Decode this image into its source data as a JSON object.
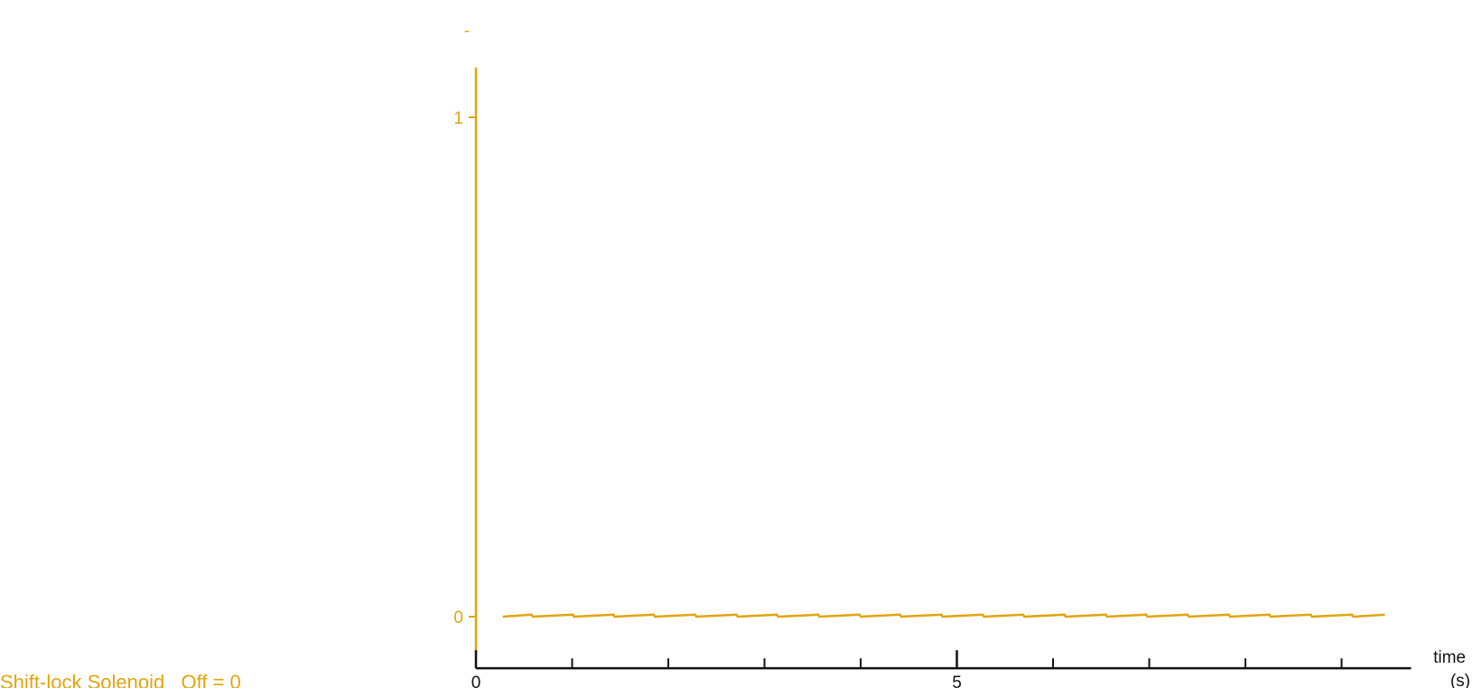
{
  "chart_data": {
    "type": "line",
    "top_label": "-",
    "xlabel": [
      "time",
      "(s)"
    ],
    "xlim": [
      0,
      9.6
    ],
    "ylim": [
      -0.06,
      1.1
    ],
    "x_ticks_labeled": [
      {
        "value": 0,
        "label": "0"
      },
      {
        "value": 5,
        "label": "5"
      }
    ],
    "x_ticks_minor": [
      1,
      2,
      3,
      4,
      6,
      7,
      8,
      9
    ],
    "y_ticks": [
      {
        "value": 0,
        "label": "0"
      },
      {
        "value": 1,
        "label": "1"
      }
    ],
    "series": [
      {
        "name": "Shift-lock Solenoid   Off = 0",
        "color": "#e2a40e",
        "x": [
          0.28,
          0.58,
          0.59,
          1.01,
          1.02,
          1.43,
          1.44,
          1.85,
          1.86,
          2.28,
          2.29,
          2.71,
          2.72,
          3.13,
          3.14,
          3.56,
          3.57,
          3.99,
          4.0,
          4.41,
          4.42,
          4.84,
          4.85,
          5.27,
          5.28,
          5.69,
          5.7,
          6.12,
          6.13,
          6.55,
          6.56,
          6.97,
          6.98,
          7.4,
          7.41,
          7.83,
          7.84,
          8.25,
          8.26,
          8.68,
          8.69,
          9.11,
          9.12,
          9.45
        ],
        "y": [
          0.0,
          0.004,
          0.0,
          0.004,
          0.0,
          0.004,
          0.0,
          0.004,
          0.0,
          0.004,
          0.0,
          0.004,
          0.0,
          0.004,
          0.0,
          0.004,
          0.0,
          0.004,
          0.0,
          0.004,
          0.0,
          0.004,
          0.0,
          0.004,
          0.0,
          0.004,
          0.0,
          0.004,
          0.0,
          0.004,
          0.0,
          0.004,
          0.0,
          0.004,
          0.0,
          0.004,
          0.0,
          0.004,
          0.0,
          0.004,
          0.0,
          0.004,
          0.0,
          0.004
        ]
      }
    ]
  }
}
